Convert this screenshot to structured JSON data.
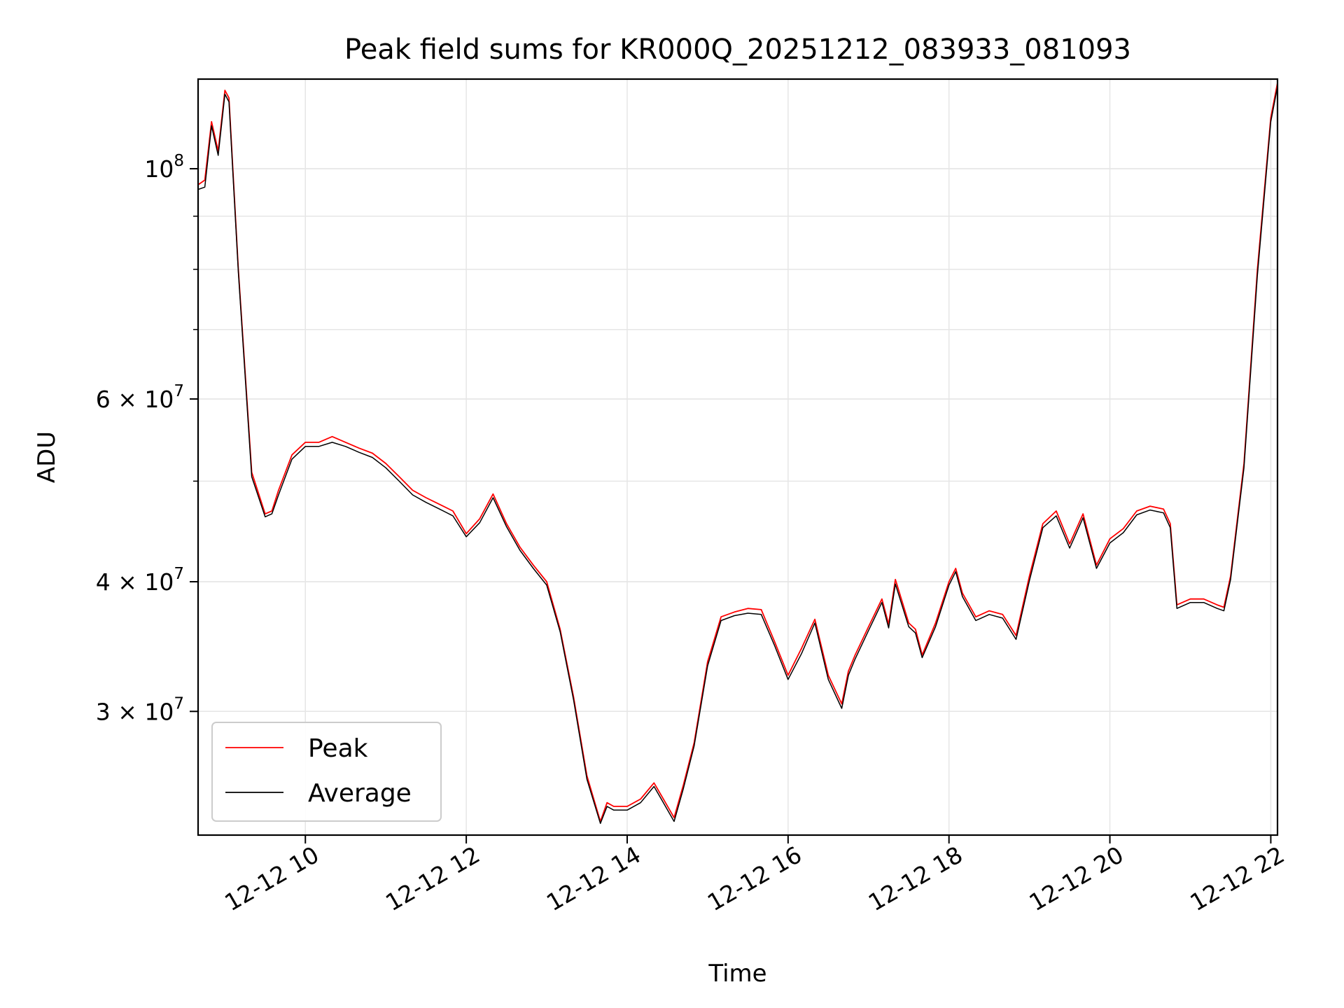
{
  "chart_data": {
    "type": "line",
    "title": "Peak field sums for KR000Q_20251212_083933_081093",
    "xlabel": "Time",
    "ylabel": "ADU",
    "y_scale": "log",
    "xlim": [
      "2025-12-12 08:40",
      "2025-12-12 22:05"
    ],
    "ylim": [
      22800000,
      122000000
    ],
    "x_ticks": [
      "2025-12-12 10:00",
      "2025-12-12 12:00",
      "2025-12-12 14:00",
      "2025-12-12 16:00",
      "2025-12-12 18:00",
      "2025-12-12 20:00",
      "2025-12-12 22:00"
    ],
    "x_tick_labels": [
      "12-12 10",
      "12-12 12",
      "12-12 14",
      "12-12 16",
      "12-12 18",
      "12-12 20",
      "12-12 22"
    ],
    "y_ticks": [
      100000000,
      60000000,
      40000000,
      30000000
    ],
    "y_tick_labels": [
      {
        "base": "10",
        "exp": "8"
      },
      {
        "base": "6 × 10",
        "exp": "7"
      },
      {
        "base": "4 × 10",
        "exp": "7"
      },
      {
        "base": "3 × 10",
        "exp": "7"
      }
    ],
    "grid": true,
    "legend": "lower-left",
    "series": [
      {
        "name": "Peak",
        "color": "#ff0000",
        "x": [
          "2025-12-12 08:40",
          "2025-12-12 08:45",
          "2025-12-12 08:50",
          "2025-12-12 08:55",
          "2025-12-12 09:00",
          "2025-12-12 09:03",
          "2025-12-12 09:10",
          "2025-12-12 09:20",
          "2025-12-12 09:30",
          "2025-12-12 09:35",
          "2025-12-12 09:40",
          "2025-12-12 09:50",
          "2025-12-12 10:00",
          "2025-12-12 10:10",
          "2025-12-12 10:20",
          "2025-12-12 10:30",
          "2025-12-12 10:40",
          "2025-12-12 10:50",
          "2025-12-12 11:00",
          "2025-12-12 11:10",
          "2025-12-12 11:20",
          "2025-12-12 11:30",
          "2025-12-12 11:40",
          "2025-12-12 11:50",
          "2025-12-12 12:00",
          "2025-12-12 12:10",
          "2025-12-12 12:20",
          "2025-12-12 12:30",
          "2025-12-12 12:40",
          "2025-12-12 12:50",
          "2025-12-12 13:00",
          "2025-12-12 13:10",
          "2025-12-12 13:20",
          "2025-12-12 13:30",
          "2025-12-12 13:40",
          "2025-12-12 13:45",
          "2025-12-12 13:50",
          "2025-12-12 14:00",
          "2025-12-12 14:10",
          "2025-12-12 14:20",
          "2025-12-12 14:27",
          "2025-12-12 14:35",
          "2025-12-12 14:42",
          "2025-12-12 14:50",
          "2025-12-12 15:00",
          "2025-12-12 15:10",
          "2025-12-12 15:20",
          "2025-12-12 15:30",
          "2025-12-12 15:40",
          "2025-12-12 15:50",
          "2025-12-12 16:00",
          "2025-12-12 16:10",
          "2025-12-12 16:20",
          "2025-12-12 16:30",
          "2025-12-12 16:40",
          "2025-12-12 16:45",
          "2025-12-12 16:50",
          "2025-12-12 17:00",
          "2025-12-12 17:10",
          "2025-12-12 17:15",
          "2025-12-12 17:20",
          "2025-12-12 17:30",
          "2025-12-12 17:35",
          "2025-12-12 17:40",
          "2025-12-12 17:50",
          "2025-12-12 18:00",
          "2025-12-12 18:05",
          "2025-12-12 18:10",
          "2025-12-12 18:20",
          "2025-12-12 18:30",
          "2025-12-12 18:40",
          "2025-12-12 18:50",
          "2025-12-12 19:00",
          "2025-12-12 19:10",
          "2025-12-12 19:20",
          "2025-12-12 19:30",
          "2025-12-12 19:40",
          "2025-12-12 19:50",
          "2025-12-12 20:00",
          "2025-12-12 20:10",
          "2025-12-12 20:20",
          "2025-12-12 20:30",
          "2025-12-12 20:40",
          "2025-12-12 20:45",
          "2025-12-12 20:50",
          "2025-12-12 21:00",
          "2025-12-12 21:10",
          "2025-12-12 21:20",
          "2025-12-12 21:25",
          "2025-12-12 21:30",
          "2025-12-12 21:40",
          "2025-12-12 21:50",
          "2025-12-12 22:00",
          "2025-12-12 22:05"
        ],
        "values": [
          96500000,
          97500000,
          111000000,
          104000000,
          119000000,
          117000000,
          80000000,
          51000000,
          46500000,
          46800000,
          49000000,
          53000000,
          54500000,
          54500000,
          55200000,
          54500000,
          53800000,
          53200000,
          52000000,
          50500000,
          49000000,
          48200000,
          47500000,
          46800000,
          44500000,
          46000000,
          48600000,
          45500000,
          43200000,
          41500000,
          40000000,
          36000000,
          31000000,
          26000000,
          23500000,
          24500000,
          24300000,
          24300000,
          24700000,
          25600000,
          24700000,
          23700000,
          25500000,
          28000000,
          33500000,
          37000000,
          37400000,
          37700000,
          37600000,
          35000000,
          32500000,
          34500000,
          36800000,
          32500000,
          30500000,
          32800000,
          34000000,
          36200000,
          38500000,
          36400000,
          40200000,
          36500000,
          36000000,
          34000000,
          36500000,
          40000000,
          41200000,
          39000000,
          37000000,
          37500000,
          37200000,
          35500000,
          40500000,
          45500000,
          46800000,
          43500000,
          46500000,
          41500000,
          44000000,
          45000000,
          46800000,
          47300000,
          47000000,
          45500000,
          38000000,
          38500000,
          38500000,
          38000000,
          37800000,
          40500000,
          52000000,
          80000000,
          112000000,
          121000000
        ]
      },
      {
        "name": "Average",
        "color": "#000000",
        "x": [
          "2025-12-12 08:40",
          "2025-12-12 08:45",
          "2025-12-12 08:50",
          "2025-12-12 08:55",
          "2025-12-12 09:00",
          "2025-12-12 09:03",
          "2025-12-12 09:10",
          "2025-12-12 09:20",
          "2025-12-12 09:30",
          "2025-12-12 09:35",
          "2025-12-12 09:40",
          "2025-12-12 09:50",
          "2025-12-12 10:00",
          "2025-12-12 10:10",
          "2025-12-12 10:20",
          "2025-12-12 10:30",
          "2025-12-12 10:40",
          "2025-12-12 10:50",
          "2025-12-12 11:00",
          "2025-12-12 11:10",
          "2025-12-12 11:20",
          "2025-12-12 11:30",
          "2025-12-12 11:40",
          "2025-12-12 11:50",
          "2025-12-12 12:00",
          "2025-12-12 12:10",
          "2025-12-12 12:20",
          "2025-12-12 12:30",
          "2025-12-12 12:40",
          "2025-12-12 12:50",
          "2025-12-12 13:00",
          "2025-12-12 13:10",
          "2025-12-12 13:20",
          "2025-12-12 13:30",
          "2025-12-12 13:40",
          "2025-12-12 13:45",
          "2025-12-12 13:50",
          "2025-12-12 14:00",
          "2025-12-12 14:10",
          "2025-12-12 14:20",
          "2025-12-12 14:27",
          "2025-12-12 14:35",
          "2025-12-12 14:42",
          "2025-12-12 14:50",
          "2025-12-12 15:00",
          "2025-12-12 15:10",
          "2025-12-12 15:20",
          "2025-12-12 15:30",
          "2025-12-12 15:40",
          "2025-12-12 15:50",
          "2025-12-12 16:00",
          "2025-12-12 16:10",
          "2025-12-12 16:20",
          "2025-12-12 16:30",
          "2025-12-12 16:40",
          "2025-12-12 16:45",
          "2025-12-12 16:50",
          "2025-12-12 17:00",
          "2025-12-12 17:10",
          "2025-12-12 17:15",
          "2025-12-12 17:20",
          "2025-12-12 17:30",
          "2025-12-12 17:35",
          "2025-12-12 17:40",
          "2025-12-12 17:50",
          "2025-12-12 18:00",
          "2025-12-12 18:05",
          "2025-12-12 18:10",
          "2025-12-12 18:20",
          "2025-12-12 18:30",
          "2025-12-12 18:40",
          "2025-12-12 18:50",
          "2025-12-12 19:00",
          "2025-12-12 19:10",
          "2025-12-12 19:20",
          "2025-12-12 19:30",
          "2025-12-12 19:40",
          "2025-12-12 19:50",
          "2025-12-12 20:00",
          "2025-12-12 20:10",
          "2025-12-12 20:20",
          "2025-12-12 20:30",
          "2025-12-12 20:40",
          "2025-12-12 20:45",
          "2025-12-12 20:50",
          "2025-12-12 21:00",
          "2025-12-12 21:10",
          "2025-12-12 21:20",
          "2025-12-12 21:25",
          "2025-12-12 21:30",
          "2025-12-12 21:40",
          "2025-12-12 21:50",
          "2025-12-12 22:00",
          "2025-12-12 22:05"
        ],
        "values": [
          95500000,
          96000000,
          110000000,
          103000000,
          118000000,
          116000000,
          79500000,
          50500000,
          46200000,
          46500000,
          48500000,
          52500000,
          54000000,
          54000000,
          54500000,
          54000000,
          53300000,
          52700000,
          51500000,
          50000000,
          48500000,
          47700000,
          47000000,
          46300000,
          44200000,
          45600000,
          48200000,
          45200000,
          42900000,
          41200000,
          39700000,
          35800000,
          30800000,
          25800000,
          23400000,
          24300000,
          24100000,
          24100000,
          24500000,
          25400000,
          24500000,
          23500000,
          25300000,
          27800000,
          33200000,
          36700000,
          37100000,
          37300000,
          37200000,
          34700000,
          32200000,
          34100000,
          36500000,
          32200000,
          30200000,
          32500000,
          33700000,
          35900000,
          38200000,
          36100000,
          39800000,
          36200000,
          35700000,
          33800000,
          36200000,
          39700000,
          40900000,
          38700000,
          36700000,
          37200000,
          36900000,
          35200000,
          40100000,
          45100000,
          46300000,
          43100000,
          46100000,
          41200000,
          43600000,
          44600000,
          46400000,
          46900000,
          46600000,
          45100000,
          37700000,
          38200000,
          38200000,
          37700000,
          37500000,
          40200000,
          51500000,
          79000000,
          111000000,
          120000000
        ]
      }
    ]
  }
}
